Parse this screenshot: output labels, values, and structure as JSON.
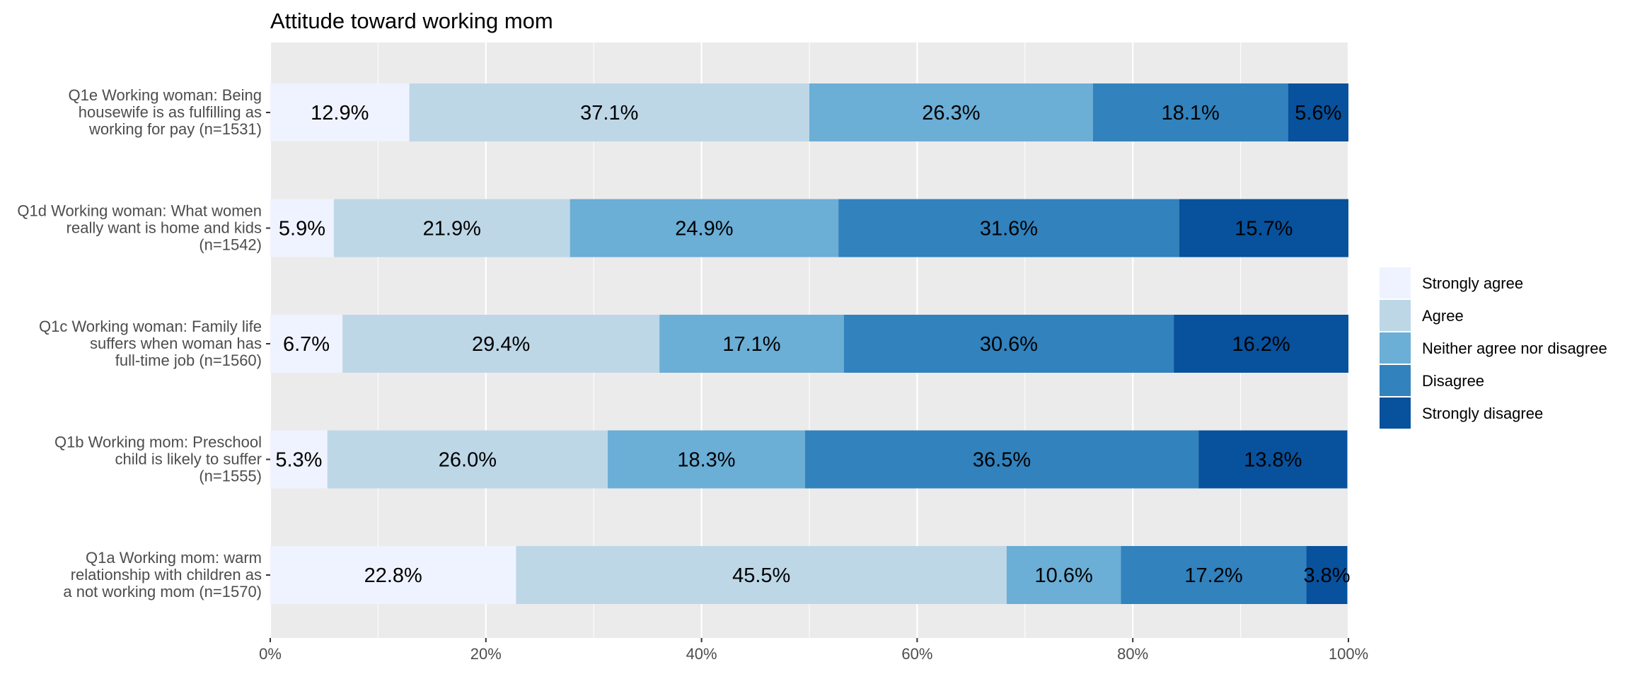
{
  "chart_data": {
    "type": "bar",
    "orientation": "horizontal",
    "stacked": true,
    "title": "Attitude toward working mom",
    "xlabel": "",
    "ylabel": "",
    "xlim": [
      0,
      100
    ],
    "x_ticks": [
      "0%",
      "20%",
      "40%",
      "60%",
      "80%",
      "100%"
    ],
    "x_tick_values": [
      0,
      20,
      40,
      60,
      80,
      100
    ],
    "grid": true,
    "legend_position": "right",
    "categories": [
      [
        "Q1e Working woman: Being",
        "housewife is as fulfilling as",
        "working for pay (n=1531)"
      ],
      [
        "Q1d Working woman: What women",
        "really want is home and kids",
        "(n=1542)"
      ],
      [
        "Q1c Working woman: Family life",
        "suffers when woman has",
        "full-time job (n=1560)"
      ],
      [
        "Q1b Working mom: Preschool",
        "child is likely to suffer",
        "(n=1555)"
      ],
      [
        "Q1a Working mom: warm",
        "relationship with children as",
        "a not working mom (n=1570)"
      ]
    ],
    "series": [
      {
        "name": "Strongly agree",
        "color": "#eff3ff",
        "values": [
          12.9,
          5.9,
          6.7,
          5.3,
          22.8
        ],
        "labels": [
          "12.9%",
          "5.9%",
          "6.7%",
          "5.3%",
          "22.8%"
        ]
      },
      {
        "name": "Agree",
        "color": "#bdd7e7",
        "values": [
          37.1,
          21.9,
          29.4,
          26.0,
          45.5
        ],
        "labels": [
          "37.1%",
          "21.9%",
          "29.4%",
          "26.0%",
          "45.5%"
        ]
      },
      {
        "name": "Neither agree nor disagree",
        "color": "#6baed6",
        "values": [
          26.3,
          24.9,
          17.1,
          18.3,
          10.6
        ],
        "labels": [
          "26.3%",
          "24.9%",
          "17.1%",
          "18.3%",
          "10.6%"
        ]
      },
      {
        "name": "Disagree",
        "color": "#3182bd",
        "values": [
          18.1,
          31.6,
          30.6,
          36.5,
          17.2
        ],
        "labels": [
          "18.1%",
          "31.6%",
          "30.6%",
          "36.5%",
          "17.2%"
        ]
      },
      {
        "name": "Strongly disagree",
        "color": "#08519c",
        "values": [
          5.6,
          15.7,
          16.2,
          13.8,
          3.8
        ],
        "labels": [
          "5.6%",
          "15.7%",
          "16.2%",
          "13.8%",
          "3.8%"
        ]
      }
    ],
    "panel_background": "#ebebeb",
    "grid_color": "#ffffff"
  }
}
